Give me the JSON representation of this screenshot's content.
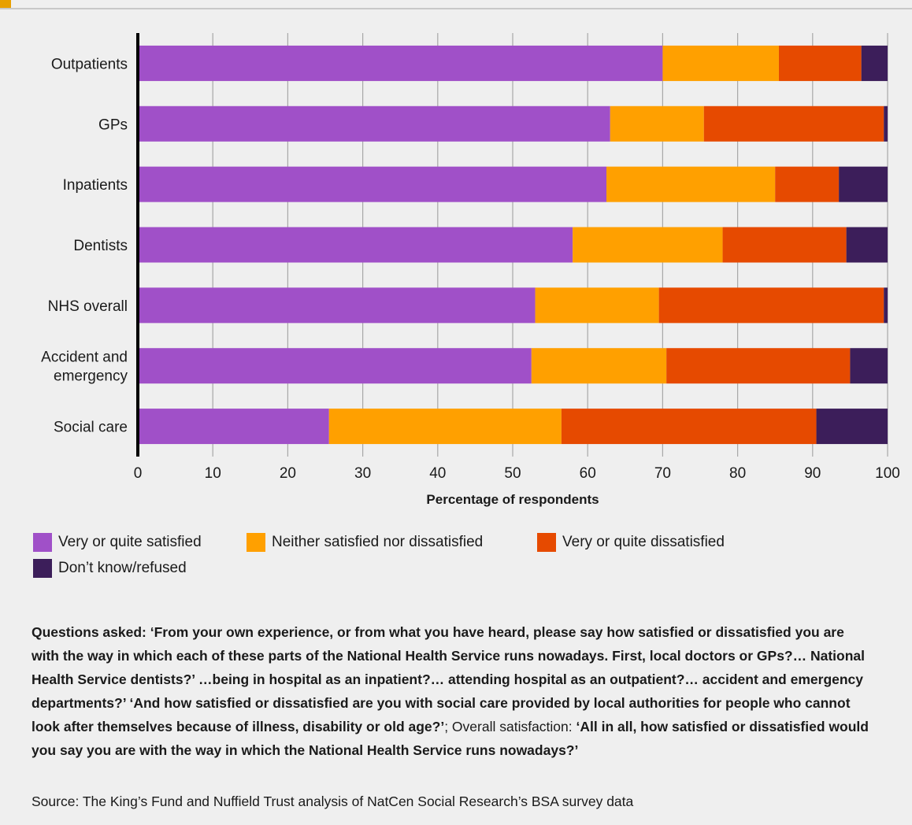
{
  "chart_data": {
    "type": "bar",
    "orientation": "horizontal",
    "stacked": true,
    "categories": [
      "Outpatients",
      "GPs",
      "Inpatients",
      "Dentists",
      "NHS overall",
      "Accident and emergency",
      "Social care"
    ],
    "category_lines": [
      [
        "Outpatients"
      ],
      [
        "GPs"
      ],
      [
        "Inpatients"
      ],
      [
        "Dentists"
      ],
      [
        "NHS overall"
      ],
      [
        "Accident and",
        "emergency"
      ],
      [
        "Social care"
      ]
    ],
    "series": [
      {
        "name": "Very or quite satisfied",
        "color": "#a050c8",
        "values": [
          70,
          63,
          62.5,
          58,
          53,
          52.5,
          25.5
        ]
      },
      {
        "name": "Neither satisfied nor dissatisfied",
        "color": "#ffa000",
        "values": [
          15.5,
          12.5,
          22.5,
          20,
          16.5,
          18,
          31
        ]
      },
      {
        "name": "Very or quite dissatisfied",
        "color": "#e64a00",
        "values": [
          11,
          24,
          8.5,
          16.5,
          30,
          24.5,
          34
        ]
      },
      {
        "name": "Don't know/refused",
        "color": "#3c1e5a",
        "values": [
          3.5,
          0.5,
          6.5,
          5.5,
          0.5,
          5,
          9.5
        ]
      }
    ],
    "xlabel": "Percentage of respondents",
    "ylabel": "",
    "xlim": [
      0,
      100
    ],
    "x_ticks": [
      0,
      10,
      20,
      30,
      40,
      50,
      60,
      70,
      80,
      90,
      100
    ],
    "grid": true,
    "legend_position": "bottom"
  },
  "legend": {
    "items": [
      {
        "label": "Very or quite satisfied",
        "color": "#a050c8"
      },
      {
        "label": "Neither satisfied nor dissatisfied",
        "color": "#ffa000"
      },
      {
        "label": "Very or quite dissatisfied",
        "color": "#e64a00"
      },
      {
        "label": "Don’t know/refused",
        "color": "#3c1e5a"
      }
    ]
  },
  "notes": {
    "questions": "Questions asked: ‘From your own experience, or from what you have heard, please say how satisfied or dissatisfied you are with the way in which each of these parts of the National Health Service runs nowadays. First, local doctors or GPs?… National Health Service dentists?’ …being in hospital as an inpatient?… attending hospital as an outpatient?… accident and emergency departments?’ ‘And how satisfied or dissatisfied are you with social care provided by local authorities for people who cannot look after themselves because of illness, disability or old age?’",
    "separator": "; Overall satisfaction: ",
    "overall": "‘All in all, how satisfied or dissatisfied would you say you are with the way in which the National Health Service runs nowadays?’"
  },
  "source": "Source: The King’s Fund and Nuffield Trust analysis of NatCen Social Research’s BSA survey data"
}
